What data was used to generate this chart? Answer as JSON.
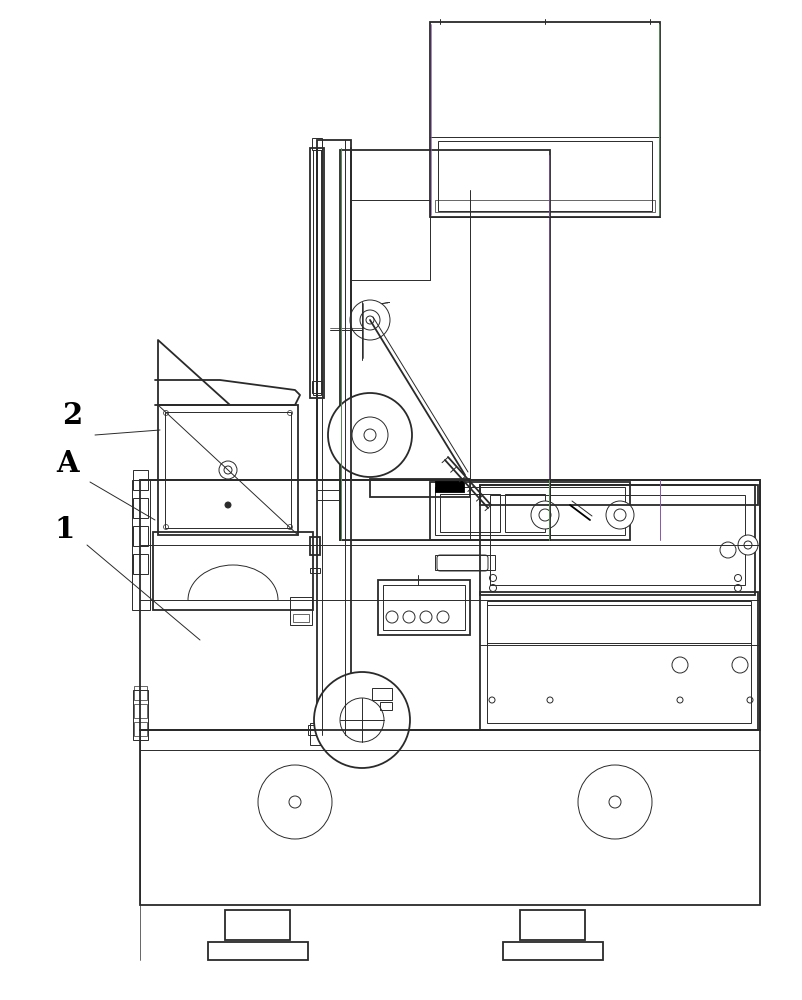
{
  "bg_color": "#ffffff",
  "lc": "#2a2a2a",
  "lc_green": "#5a8a5a",
  "lc_purple": "#8855aa",
  "figsize": [
    8.03,
    10.0
  ],
  "dpi": 100
}
